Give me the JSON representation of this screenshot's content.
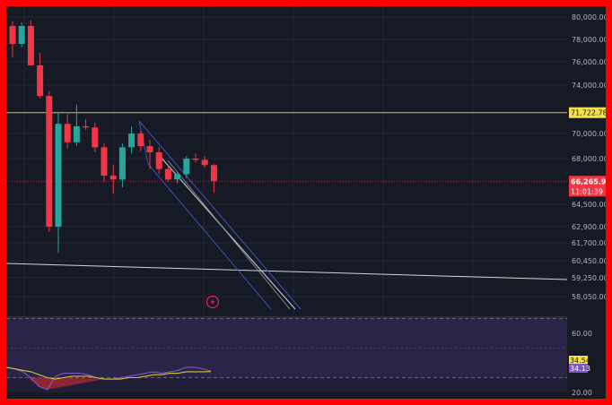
{
  "chart_data": [
    {
      "type": "candlestick",
      "title": "",
      "y_ticks": [
        "80,000.00",
        "78,000.00",
        "76,000.00",
        "74,000.00",
        "70,000.00",
        "68,000.00",
        "64,500.00",
        "62,900.00",
        "61,700.00",
        "60,450.00",
        "59,250.00",
        "58,050.00"
      ],
      "y_tick_values": [
        80000,
        78000,
        76000,
        74000,
        70000,
        68000,
        64500,
        62900,
        61700,
        60450,
        59250,
        58050
      ],
      "horizontal_line": {
        "label": "71,722.78",
        "value": 71722.78,
        "color": "#d4c23a"
      },
      "last_price": {
        "label": "66,265.94",
        "value": 66265.94,
        "countdown": "11:01:39",
        "color": "#f23645"
      },
      "grid": true,
      "colors": {
        "up": "#26a69a",
        "down": "#f23645",
        "background": "#161a25",
        "channel": "#3f51b5",
        "trend": "#d1d4dc"
      },
      "candles": [
        {
          "o": 79200,
          "h": 79600,
          "l": 76400,
          "c": 77600
        },
        {
          "o": 77600,
          "h": 79500,
          "l": 77300,
          "c": 79200
        },
        {
          "o": 79200,
          "h": 79700,
          "l": 75700,
          "c": 75700
        },
        {
          "o": 75700,
          "h": 76800,
          "l": 72900,
          "c": 73100
        },
        {
          "o": 73100,
          "h": 73500,
          "l": 62500,
          "c": 62900
        },
        {
          "o": 62900,
          "h": 71800,
          "l": 61000,
          "c": 70800
        },
        {
          "o": 70800,
          "h": 71600,
          "l": 68800,
          "c": 69300
        },
        {
          "o": 69300,
          "h": 72400,
          "l": 69000,
          "c": 70600
        },
        {
          "o": 70600,
          "h": 71200,
          "l": 70300,
          "c": 70500
        },
        {
          "o": 70500,
          "h": 70900,
          "l": 68500,
          "c": 68900
        },
        {
          "o": 68900,
          "h": 69200,
          "l": 66200,
          "c": 66700
        },
        {
          "o": 66700,
          "h": 67500,
          "l": 65300,
          "c": 66400
        },
        {
          "o": 66400,
          "h": 69200,
          "l": 65800,
          "c": 68900
        },
        {
          "o": 68900,
          "h": 70600,
          "l": 68400,
          "c": 70000
        },
        {
          "o": 70000,
          "h": 70200,
          "l": 68600,
          "c": 69000
        },
        {
          "o": 69000,
          "h": 69500,
          "l": 67200,
          "c": 68500
        },
        {
          "o": 68500,
          "h": 68900,
          "l": 66800,
          "c": 67200
        },
        {
          "o": 67200,
          "h": 67500,
          "l": 66200,
          "c": 66400
        },
        {
          "o": 66400,
          "h": 67000,
          "l": 66100,
          "c": 66800
        },
        {
          "o": 66800,
          "h": 68200,
          "l": 66500,
          "c": 68000
        },
        {
          "o": 68000,
          "h": 68400,
          "l": 67700,
          "c": 67900
        },
        {
          "o": 67900,
          "h": 68200,
          "l": 67300,
          "c": 67500
        },
        {
          "o": 67500,
          "h": 67600,
          "l": 65400,
          "c": 66266
        }
      ]
    },
    {
      "type": "line",
      "title": "",
      "y_ticks": [
        "60.00",
        "20.00"
      ],
      "y_tick_values": [
        60,
        20
      ],
      "band": [
        30,
        70
      ],
      "values_shown": [
        "34.54",
        "34.13"
      ],
      "series": [
        {
          "color": "#7e57c2",
          "values": [
            37,
            36,
            34,
            30,
            24,
            22,
            31,
            33,
            33,
            33,
            32,
            30,
            29,
            29,
            30,
            31,
            32,
            33,
            34,
            33,
            34,
            35,
            37,
            37,
            36,
            34.5
          ]
        },
        {
          "color": "#d4c23a",
          "values": [
            37,
            36,
            35,
            34,
            32,
            30,
            29,
            30,
            31,
            31,
            31,
            30,
            29,
            29,
            29,
            30,
            30,
            31,
            32,
            32,
            33,
            33,
            34,
            34,
            34,
            34.1
          ]
        }
      ]
    }
  ]
}
